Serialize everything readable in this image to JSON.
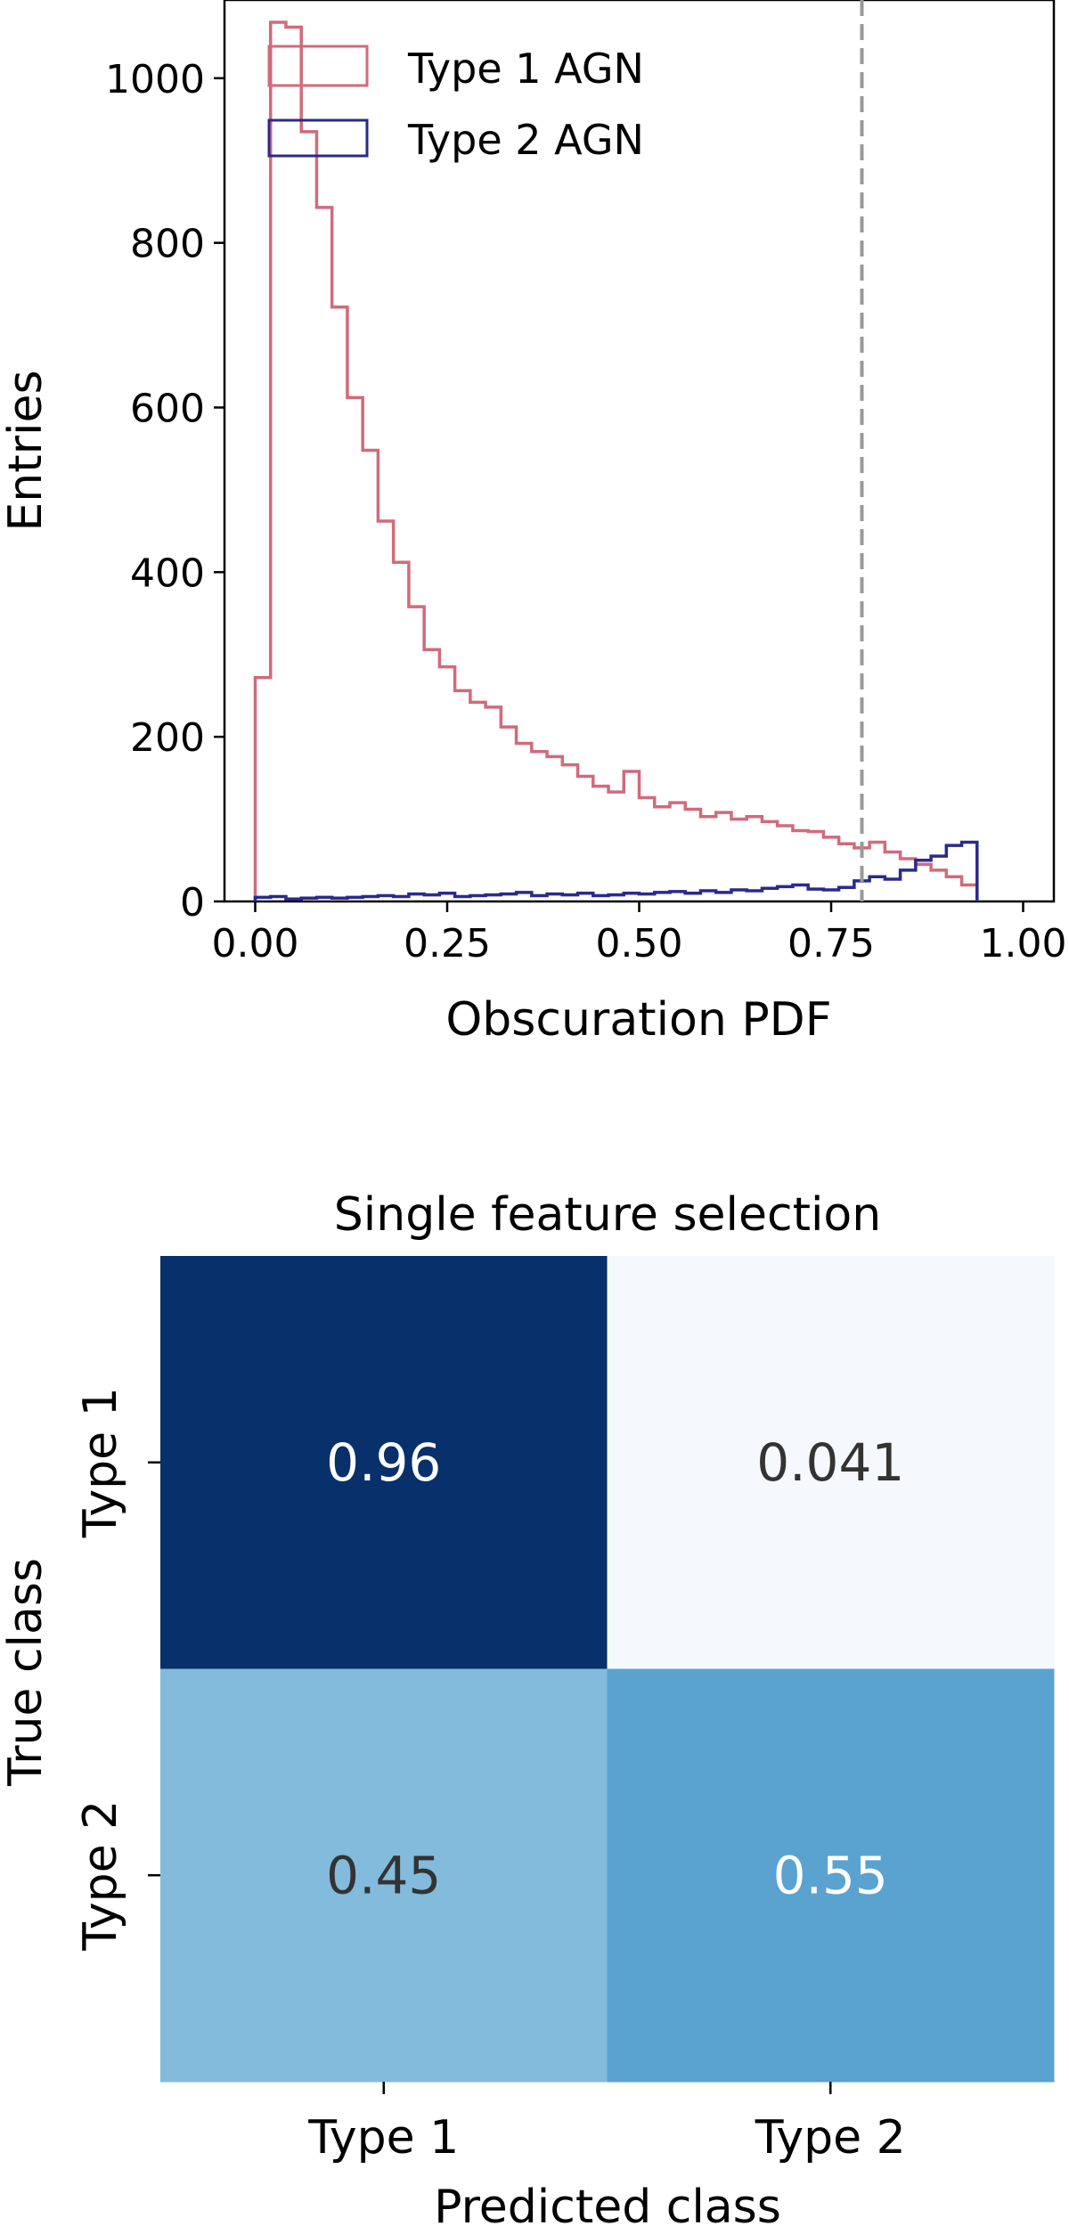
{
  "chart_data": [
    {
      "type": "histogram",
      "xlabel": "Obscuration PDF",
      "ylabel": "Entries",
      "xlim": [
        -0.04,
        1.04
      ],
      "ylim": [
        0,
        1095
      ],
      "x_ticks": [
        "0.00",
        "0.25",
        "0.50",
        "0.75",
        "1.00"
      ],
      "x_tick_values": [
        0,
        0.25,
        0.5,
        0.75,
        1.0
      ],
      "y_ticks": [
        "0",
        "200",
        "400",
        "600",
        "800",
        "1000"
      ],
      "y_tick_values": [
        0,
        200,
        400,
        600,
        800,
        1000
      ],
      "bin_edges_start": 0,
      "bin_width": 0.02,
      "threshold_line": {
        "x": 0.79,
        "style": "dashed",
        "color": "#999999"
      },
      "legend_position": "top-left",
      "series": [
        {
          "name": "Type 1 AGN",
          "color": "#d06b7c",
          "values": [
            272,
            1068,
            1062,
            935,
            843,
            722,
            612,
            548,
            462,
            412,
            358,
            306,
            285,
            256,
            242,
            236,
            212,
            192,
            182,
            176,
            166,
            152,
            140,
            133,
            158,
            126,
            115,
            120,
            112,
            103,
            108,
            100,
            103,
            97,
            92,
            86,
            85,
            78,
            70,
            65,
            72,
            60,
            52,
            45,
            38,
            30,
            20
          ]
        },
        {
          "name": "Type 2 AGN",
          "color": "#2a2a8c",
          "values": [
            5,
            6,
            3,
            4,
            5,
            4,
            5,
            6,
            7,
            6,
            9,
            8,
            10,
            6,
            7,
            8,
            9,
            11,
            7,
            9,
            8,
            10,
            7,
            8,
            10,
            9,
            11,
            12,
            10,
            13,
            11,
            14,
            13,
            16,
            18,
            20,
            15,
            14,
            17,
            25,
            30,
            27,
            38,
            50,
            55,
            68,
            72
          ]
        }
      ]
    },
    {
      "type": "heatmap",
      "title": "Single feature selection",
      "xlabel": "Predicted class",
      "ylabel": "True class",
      "x_categories": [
        "Type 1",
        "Type 2"
      ],
      "y_categories": [
        "Type 1",
        "Type 2"
      ],
      "values": [
        [
          0.96,
          0.041
        ],
        [
          0.45,
          0.55
        ]
      ],
      "value_labels": [
        [
          "0.96",
          "0.041"
        ],
        [
          "0.45",
          "0.55"
        ]
      ],
      "colormap": "Blues",
      "cell_colors": [
        [
          "#08306b",
          "#f5f9fe"
        ],
        [
          "#82bbdb",
          "#5aa2cf"
        ]
      ],
      "label_colors": [
        [
          "#ffffff",
          "#333333"
        ],
        [
          "#333333",
          "#ffffff"
        ]
      ]
    }
  ]
}
